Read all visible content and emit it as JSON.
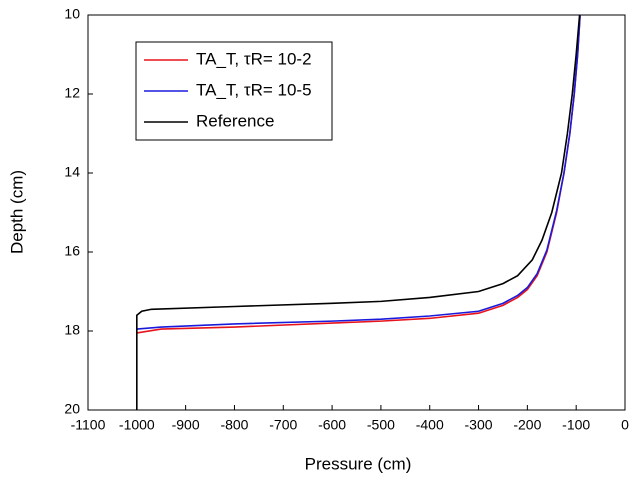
{
  "chart_data": {
    "type": "line",
    "x_label": "Pressure (cm)",
    "y_label": "Depth (cm)",
    "xlim": [
      -1100,
      0
    ],
    "xticks": [
      -1100,
      -1000,
      -900,
      -800,
      -700,
      -600,
      -500,
      -400,
      -300,
      -200,
      -100,
      0
    ],
    "ylim": [
      20,
      10
    ],
    "yticks": [
      10,
      12,
      14,
      16,
      18,
      20
    ],
    "y_inverted": true,
    "legend": "upper left",
    "series": [
      {
        "name": "TA_T, τR= 10-2",
        "color": "#e8141c",
        "x": [
          -1000,
          -950,
          -800,
          -600,
          -500,
          -400,
          -300,
          -250,
          -220,
          -200,
          -180,
          -160,
          -140,
          -125,
          -113,
          -104,
          -97,
          -92
        ],
        "values": [
          18.05,
          17.95,
          17.9,
          17.8,
          17.75,
          17.68,
          17.55,
          17.35,
          17.15,
          16.95,
          16.6,
          16.0,
          15.0,
          14,
          13,
          12,
          11,
          10
        ]
      },
      {
        "name": "TA_T, τR= 10-5",
        "color": "#1a1adc",
        "x": [
          -1000,
          -950,
          -800,
          -600,
          -500,
          -400,
          -300,
          -250,
          -220,
          -200,
          -180,
          -160,
          -140,
          -125,
          -113,
          -104,
          -97,
          -92
        ],
        "values": [
          17.95,
          17.9,
          17.82,
          17.75,
          17.7,
          17.62,
          17.5,
          17.3,
          17.1,
          16.9,
          16.55,
          15.95,
          14.95,
          14,
          13,
          12,
          11,
          10
        ]
      },
      {
        "name": "Reference",
        "color": "#000000",
        "x": [
          -1000,
          -1000,
          -990,
          -970,
          -800,
          -600,
          -500,
          -400,
          -300,
          -250,
          -220,
          -190,
          -170,
          -150,
          -130,
          -118,
          -108,
          -100,
          -93
        ],
        "values": [
          20,
          17.6,
          17.5,
          17.45,
          17.38,
          17.3,
          17.25,
          17.15,
          17.0,
          16.8,
          16.6,
          16.2,
          15.7,
          15,
          14,
          13,
          12,
          11,
          10
        ]
      }
    ]
  }
}
